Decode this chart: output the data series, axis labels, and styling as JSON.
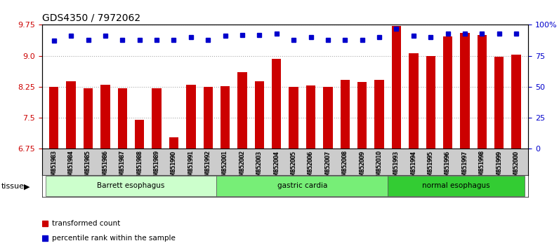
{
  "title": "GDS4350 / 7972062",
  "samples": [
    "GSM851983",
    "GSM851984",
    "GSM851985",
    "GSM851986",
    "GSM851987",
    "GSM851988",
    "GSM851989",
    "GSM851990",
    "GSM851991",
    "GSM851992",
    "GSM852001",
    "GSM852002",
    "GSM852003",
    "GSM852004",
    "GSM852005",
    "GSM852006",
    "GSM852007",
    "GSM852008",
    "GSM852009",
    "GSM852010",
    "GSM851993",
    "GSM851994",
    "GSM851995",
    "GSM851996",
    "GSM851997",
    "GSM851998",
    "GSM851999",
    "GSM852000"
  ],
  "bar_values": [
    8.25,
    8.38,
    8.22,
    8.3,
    8.22,
    7.45,
    8.22,
    7.02,
    8.3,
    8.25,
    8.27,
    8.6,
    8.38,
    8.93,
    8.25,
    8.28,
    8.25,
    8.42,
    8.37,
    8.42,
    9.73,
    9.07,
    9.0,
    9.47,
    9.55,
    9.5,
    8.97,
    9.02
  ],
  "percentile_values": [
    87,
    91,
    88,
    91,
    88,
    88,
    88,
    88,
    90,
    88,
    91,
    92,
    92,
    93,
    88,
    90,
    88,
    88,
    88,
    90,
    97,
    91,
    90,
    93,
    93,
    93,
    93,
    93
  ],
  "ylim_left": [
    6.75,
    9.75
  ],
  "ylim_right": [
    0,
    100
  ],
  "yticks_left": [
    6.75,
    7.5,
    8.25,
    9.0,
    9.75
  ],
  "yticks_right": [
    0,
    25,
    50,
    75,
    100
  ],
  "ytick_labels_right": [
    "0",
    "25",
    "50",
    "75",
    "100%"
  ],
  "bar_color": "#cc0000",
  "dot_color": "#0000cc",
  "grid_color": "#aaaaaa",
  "xtick_bg_color": "#cccccc",
  "tissue_groups": [
    {
      "label": "Barrett esophagus",
      "start": 0,
      "end": 9,
      "color": "#ccffcc"
    },
    {
      "label": "gastric cardia",
      "start": 10,
      "end": 19,
      "color": "#77ee77"
    },
    {
      "label": "normal esophagus",
      "start": 20,
      "end": 27,
      "color": "#33cc33"
    }
  ],
  "tissue_label": "tissue",
  "legend_bar_label": "transformed count",
  "legend_dot_label": "percentile rank within the sample",
  "bg_color": "#ffffff",
  "spine_color": "#000000",
  "bar_width": 0.55,
  "n_samples": 28
}
